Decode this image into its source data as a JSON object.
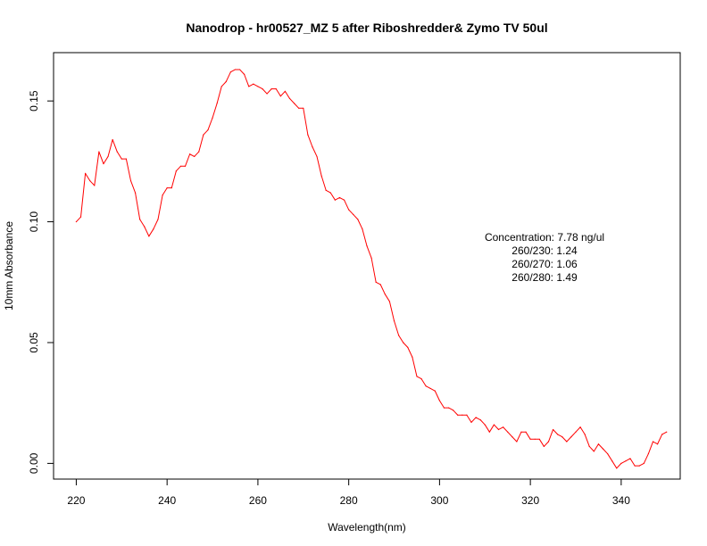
{
  "chart_data": {
    "type": "line",
    "title": "Nanodrop - hr00527_MZ 5 after Riboshredder& Zymo  TV 50ul",
    "xlabel": "Wavelength(nm)",
    "ylabel": "10mm Absorbance",
    "xlim": [
      215,
      353
    ],
    "ylim": [
      -0.0065,
      0.17
    ],
    "x_ticks": [
      220,
      240,
      260,
      280,
      300,
      320,
      340
    ],
    "x_tick_labels": [
      "220",
      "240",
      "260",
      "280",
      "300",
      "320",
      "340"
    ],
    "y_ticks": [
      0.0,
      0.05,
      0.1,
      0.15
    ],
    "y_tick_labels": [
      "0.00",
      "0.05",
      "0.10",
      "0.15"
    ],
    "grid": false,
    "line_color": "#ff0000",
    "annotations": [
      "Concentration: 7.78 ng/ul",
      "260/230: 1.24",
      "260/270: 1.06",
      "260/280: 1.49"
    ],
    "series": [
      {
        "x": [
          220,
          221,
          222,
          223,
          224,
          225,
          226,
          227,
          228,
          229,
          230,
          231,
          232,
          233,
          234,
          235,
          236,
          237,
          238,
          239,
          240,
          241,
          242,
          243,
          244,
          245,
          246,
          247,
          248,
          249,
          250,
          251,
          252,
          253,
          254,
          255,
          256,
          257,
          258,
          259,
          260,
          261,
          262,
          263,
          264,
          265,
          266,
          267,
          268,
          269,
          270,
          271,
          272,
          273,
          274,
          275,
          276,
          277,
          278,
          279,
          280,
          281,
          282,
          283,
          284,
          285,
          286,
          287,
          288,
          289,
          290,
          291,
          292,
          293,
          294,
          295,
          296,
          297,
          298,
          299,
          300,
          301,
          302,
          303,
          304,
          305,
          306,
          307,
          308,
          309,
          310,
          311,
          312,
          313,
          314,
          315,
          316,
          317,
          318,
          319,
          320,
          321,
          322,
          323,
          324,
          325,
          326,
          327,
          328,
          329,
          330,
          331,
          332,
          333,
          334,
          335,
          336,
          337,
          338,
          339,
          340,
          341,
          342,
          343,
          344,
          345,
          346,
          347,
          348,
          349,
          350
        ],
        "y": [
          0.1,
          0.102,
          0.12,
          0.117,
          0.115,
          0.129,
          0.124,
          0.127,
          0.134,
          0.129,
          0.126,
          0.126,
          0.117,
          0.112,
          0.101,
          0.098,
          0.094,
          0.097,
          0.101,
          0.111,
          0.114,
          0.114,
          0.121,
          0.123,
          0.123,
          0.128,
          0.127,
          0.129,
          0.136,
          0.138,
          0.143,
          0.149,
          0.156,
          0.158,
          0.162,
          0.163,
          0.163,
          0.161,
          0.156,
          0.157,
          0.156,
          0.155,
          0.153,
          0.155,
          0.155,
          0.152,
          0.154,
          0.151,
          0.149,
          0.147,
          0.147,
          0.136,
          0.131,
          0.127,
          0.119,
          0.113,
          0.112,
          0.109,
          0.11,
          0.109,
          0.105,
          0.103,
          0.101,
          0.097,
          0.09,
          0.085,
          0.075,
          0.074,
          0.07,
          0.067,
          0.059,
          0.053,
          0.05,
          0.048,
          0.044,
          0.036,
          0.035,
          0.032,
          0.031,
          0.03,
          0.026,
          0.023,
          0.023,
          0.022,
          0.02,
          0.02,
          0.02,
          0.017,
          0.019,
          0.018,
          0.016,
          0.013,
          0.016,
          0.014,
          0.015,
          0.013,
          0.011,
          0.009,
          0.013,
          0.013,
          0.01,
          0.01,
          0.01,
          0.007,
          0.009,
          0.014,
          0.012,
          0.011,
          0.009,
          0.011,
          0.013,
          0.015,
          0.012,
          0.007,
          0.005,
          0.008,
          0.006,
          0.004,
          0.001,
          -0.002,
          0.0,
          0.001,
          0.002,
          -0.001,
          -0.001,
          0.0,
          0.004,
          0.009,
          0.008,
          0.012,
          0.013
        ]
      }
    ]
  }
}
